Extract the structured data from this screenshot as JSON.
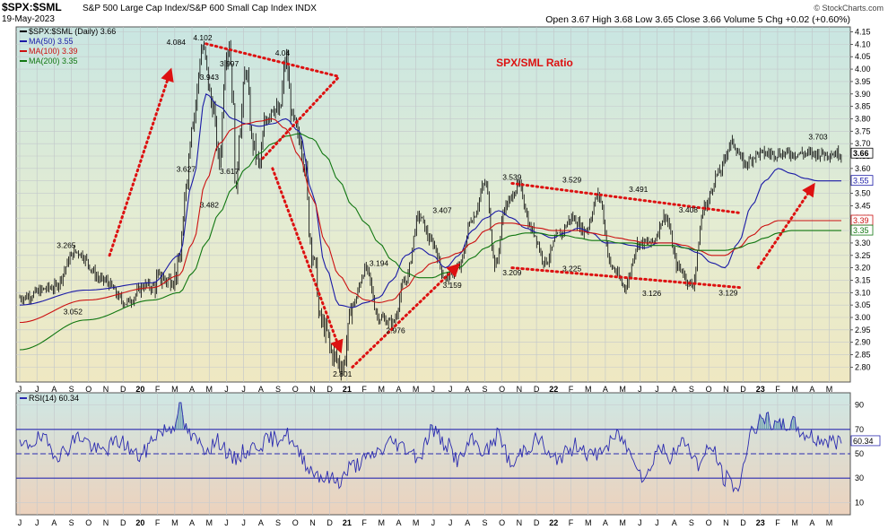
{
  "header": {
    "symbol": "$SPX:$SML",
    "description": "S&P 500 Large Cap Index/S&P 600 Small Cap Index INDX",
    "date": "19-May-2023",
    "watermark": "© StockCharts.com",
    "ohlc": "Open 3.67  High 3.68  Low 3.65  Close 3.66  Volume 5  Chg +0.02 (+0.60%)"
  },
  "chart_data": [
    {
      "type": "line",
      "panel": "price",
      "title": "SPX/SML Ratio",
      "legend": [
        {
          "label": "$SPX:$SML (Daily) 3.66",
          "color": "#000000"
        },
        {
          "label": "MA(50) 3.55",
          "color": "#1a1aa6"
        },
        {
          "label": "MA(100) 3.39",
          "color": "#cc1111"
        },
        {
          "label": "MA(200) 3.35",
          "color": "#117711"
        }
      ],
      "legend_position": "top-left",
      "ylim": [
        2.74,
        4.17
      ],
      "yticks": [
        "4.15",
        "4.10",
        "4.05",
        "4.00",
        "3.95",
        "3.90",
        "3.85",
        "3.80",
        "3.75",
        "3.70",
        "3.65",
        "3.60",
        "3.55",
        "3.50",
        "3.45",
        "3.40",
        "3.35",
        "3.30",
        "3.25",
        "3.20",
        "3.15",
        "3.10",
        "3.05",
        "3.00",
        "2.95",
        "2.90",
        "2.85",
        "2.80"
      ],
      "xticks": [
        "J",
        "J",
        "A",
        "S",
        "O",
        "N",
        "D",
        "20",
        "F",
        "M",
        "A",
        "M",
        "J",
        "J",
        "A",
        "S",
        "O",
        "N",
        "D",
        "21",
        "F",
        "M",
        "A",
        "M",
        "J",
        "J",
        "A",
        "S",
        "O",
        "N",
        "D",
        "22",
        "F",
        "M",
        "A",
        "M",
        "J",
        "J",
        "A",
        "S",
        "O",
        "N",
        "D",
        "23",
        "F",
        "M",
        "A",
        "M"
      ],
      "grid": true,
      "price_anchors": {
        "t": [
          0,
          10,
          17,
          25,
          32,
          38,
          40,
          42,
          45,
          46,
          47,
          48,
          49,
          50,
          52,
          55,
          58,
          60,
          62,
          63,
          64,
          65,
          66,
          68,
          70,
          72,
          74,
          76,
          78,
          80,
          82,
          84,
          86,
          87,
          88,
          89,
          90,
          92,
          94,
          97,
          100,
          104,
          108,
          112,
          116,
          120,
          124,
          128,
          132,
          136,
          140,
          143,
          146,
          150,
          154,
          158,
          162,
          166,
          170,
          174,
          178,
          182,
          186,
          190,
          194,
          198,
          202,
          206,
          210,
          214,
          218,
          222,
          226,
          230,
          234,
          236,
          238,
          240,
          242,
          244,
          246,
          247
        ],
        "v": [
          3.08,
          3.12,
          3.265,
          3.15,
          3.06,
          3.13,
          3.12,
          3.16,
          3.15,
          3.16,
          3.18,
          3.22,
          3.35,
          3.55,
          3.8,
          4.084,
          3.85,
          3.627,
          4.06,
          4.102,
          3.9,
          3.482,
          3.75,
          3.997,
          3.7,
          3.617,
          3.8,
          3.85,
          3.82,
          4.04,
          3.8,
          3.72,
          3.6,
          3.35,
          3.25,
          3.2,
          3.0,
          2.95,
          2.85,
          2.801,
          3.05,
          3.194,
          3.0,
          2.976,
          3.15,
          3.407,
          3.3,
          3.159,
          3.2,
          3.4,
          3.539,
          3.209,
          3.45,
          3.529,
          3.35,
          3.225,
          3.33,
          3.4,
          3.35,
          3.491,
          3.2,
          3.126,
          3.3,
          3.3,
          3.408,
          3.2,
          3.129,
          3.45,
          3.58,
          3.703,
          3.62,
          3.66,
          3.66,
          3.66,
          3.66,
          3.66,
          3.66,
          3.66,
          3.66,
          3.66,
          3.66,
          3.66
        ],
        "note_t_scale": "x index in months: t=0 is Jun 2019, t=247 is May 2023 (4 samples per month)"
      },
      "ma_anchors": {
        "ma50": {
          "t": [
            0,
            20,
            40,
            48,
            52,
            56,
            60,
            64,
            68,
            72,
            76,
            80,
            84,
            88,
            92,
            96,
            100,
            104,
            108,
            112,
            116,
            120,
            124,
            128,
            132,
            136,
            140,
            144,
            148,
            152,
            156,
            160,
            164,
            168,
            172,
            176,
            180,
            184,
            188,
            192,
            196,
            200,
            204,
            208,
            212,
            216,
            220,
            224,
            228,
            232,
            236,
            240,
            244,
            247
          ],
          "v": [
            3.05,
            3.11,
            3.14,
            3.25,
            3.55,
            3.9,
            3.85,
            3.8,
            3.78,
            3.77,
            3.78,
            3.8,
            3.75,
            3.5,
            3.2,
            3.05,
            3.04,
            3.06,
            3.08,
            3.15,
            3.25,
            3.28,
            3.25,
            3.2,
            3.25,
            3.35,
            3.4,
            3.43,
            3.4,
            3.36,
            3.34,
            3.32,
            3.34,
            3.36,
            3.34,
            3.3,
            3.3,
            3.29,
            3.28,
            3.3,
            3.3,
            3.28,
            3.26,
            3.22,
            3.2,
            3.3,
            3.45,
            3.55,
            3.6,
            3.58,
            3.56,
            3.55,
            3.55,
            3.55
          ]
        },
        "ma100": {
          "t": [
            0,
            20,
            40,
            48,
            52,
            56,
            60,
            64,
            68,
            72,
            76,
            80,
            84,
            88,
            92,
            96,
            100,
            104,
            108,
            112,
            116,
            120,
            124,
            128,
            132,
            136,
            140,
            144,
            148,
            152,
            156,
            160,
            164,
            168,
            172,
            176,
            180,
            184,
            188,
            192,
            196,
            200,
            204,
            208,
            212,
            216,
            220,
            224,
            228,
            232,
            236,
            240,
            244,
            247
          ],
          "v": [
            2.98,
            3.07,
            3.12,
            3.17,
            3.3,
            3.55,
            3.7,
            3.76,
            3.78,
            3.79,
            3.8,
            3.76,
            3.65,
            3.48,
            3.3,
            3.17,
            3.1,
            3.07,
            3.06,
            3.07,
            3.12,
            3.18,
            3.22,
            3.24,
            3.26,
            3.3,
            3.35,
            3.38,
            3.38,
            3.37,
            3.36,
            3.35,
            3.35,
            3.35,
            3.34,
            3.33,
            3.32,
            3.31,
            3.3,
            3.3,
            3.3,
            3.29,
            3.27,
            3.25,
            3.25,
            3.28,
            3.33,
            3.37,
            3.39,
            3.39,
            3.39,
            3.39,
            3.39,
            3.39
          ]
        },
        "ma200": {
          "t": [
            0,
            20,
            40,
            48,
            52,
            56,
            60,
            64,
            68,
            72,
            76,
            80,
            84,
            88,
            92,
            96,
            100,
            104,
            108,
            112,
            116,
            120,
            124,
            128,
            132,
            136,
            140,
            144,
            148,
            152,
            156,
            160,
            164,
            168,
            172,
            176,
            180,
            184,
            188,
            192,
            196,
            200,
            204,
            208,
            212,
            216,
            220,
            224,
            228,
            232,
            236,
            240,
            244,
            247
          ],
          "v": [
            2.87,
            2.99,
            3.07,
            3.1,
            3.18,
            3.3,
            3.42,
            3.52,
            3.6,
            3.66,
            3.7,
            3.73,
            3.74,
            3.72,
            3.65,
            3.55,
            3.45,
            3.38,
            3.3,
            3.23,
            3.18,
            3.16,
            3.16,
            3.18,
            3.2,
            3.24,
            3.28,
            3.31,
            3.33,
            3.34,
            3.34,
            3.33,
            3.33,
            3.32,
            3.31,
            3.31,
            3.3,
            3.3,
            3.29,
            3.29,
            3.29,
            3.28,
            3.27,
            3.27,
            3.27,
            3.28,
            3.3,
            3.32,
            3.34,
            3.35,
            3.35,
            3.35,
            3.35,
            3.35
          ]
        }
      },
      "annotations": [
        {
          "t": 47,
          "v": 4.084,
          "text": "4.084",
          "pos": "above"
        },
        {
          "t": 55,
          "v": 4.102,
          "text": "4.102",
          "pos": "above"
        },
        {
          "t": 63,
          "v": 3.997,
          "text": "3.997",
          "pos": "above"
        },
        {
          "t": 57,
          "v": 3.943,
          "text": "3.943",
          "pos": "above"
        },
        {
          "t": 79,
          "v": 4.04,
          "text": "4.04",
          "pos": "above"
        },
        {
          "t": 50,
          "v": 3.627,
          "text": "3.627",
          "pos": "below"
        },
        {
          "t": 63,
          "v": 3.617,
          "text": "3.617",
          "pos": "below"
        },
        {
          "t": 57,
          "v": 3.482,
          "text": "3.482",
          "pos": "below"
        },
        {
          "t": 14,
          "v": 3.265,
          "text": "3.265",
          "pos": "above"
        },
        {
          "t": 16,
          "v": 3.052,
          "text": "3.052",
          "pos": "below"
        },
        {
          "t": 97,
          "v": 2.801,
          "text": "2.801",
          "pos": "below"
        },
        {
          "t": 108,
          "v": 3.194,
          "text": "3.194",
          "pos": "above"
        },
        {
          "t": 113,
          "v": 2.976,
          "text": "2.976",
          "pos": "below"
        },
        {
          "t": 127,
          "v": 3.407,
          "text": "3.407",
          "pos": "above"
        },
        {
          "t": 130,
          "v": 3.159,
          "text": "3.159",
          "pos": "below"
        },
        {
          "t": 148,
          "v": 3.539,
          "text": "3.539",
          "pos": "above"
        },
        {
          "t": 148,
          "v": 3.209,
          "text": "3.209",
          "pos": "below"
        },
        {
          "t": 166,
          "v": 3.529,
          "text": "3.529",
          "pos": "above"
        },
        {
          "t": 166,
          "v": 3.225,
          "text": "3.225",
          "pos": "below"
        },
        {
          "t": 186,
          "v": 3.491,
          "text": "3.491",
          "pos": "above"
        },
        {
          "t": 190,
          "v": 3.126,
          "text": "3.126",
          "pos": "below"
        },
        {
          "t": 201,
          "v": 3.408,
          "text": "3.408",
          "pos": "above"
        },
        {
          "t": 213,
          "v": 3.129,
          "text": "3.129",
          "pos": "below"
        },
        {
          "t": 240,
          "v": 3.703,
          "text": "3.703",
          "pos": "above"
        }
      ],
      "trendlines": [
        {
          "t": [
            27,
            45
          ],
          "v": [
            3.25,
            3.98
          ],
          "arrow": true,
          "color": "#dd1111"
        },
        {
          "t": [
            56,
            96
          ],
          "v": [
            4.102,
            3.97
          ],
          "arrow": false,
          "color": "#dd1111"
        },
        {
          "t": [
            73,
            96
          ],
          "v": [
            3.64,
            3.97
          ],
          "arrow": false,
          "color": "#dd1111"
        },
        {
          "t": [
            76,
            96
          ],
          "v": [
            3.6,
            2.88
          ],
          "arrow": true,
          "color": "#dd1111"
        },
        {
          "t": [
            100,
            131
          ],
          "v": [
            2.8,
            3.2
          ],
          "arrow": true,
          "color": "#dd1111"
        },
        {
          "t": [
            148,
            217
          ],
          "v": [
            3.54,
            3.42
          ],
          "arrow": false,
          "color": "#dd1111"
        },
        {
          "t": [
            148,
            217
          ],
          "v": [
            3.2,
            3.12
          ],
          "arrow": false,
          "color": "#dd1111"
        },
        {
          "t": [
            222,
            238
          ],
          "v": [
            3.2,
            3.52
          ],
          "arrow": true,
          "color": "#dd1111"
        }
      ],
      "last_value_labels": [
        {
          "v": 3.66,
          "text": "3.66",
          "color": "#000000"
        },
        {
          "v": 3.55,
          "text": "3.55",
          "color": "#1a1aa6"
        },
        {
          "v": 3.39,
          "text": "3.39",
          "color": "#cc1111"
        },
        {
          "v": 3.35,
          "text": "3.35",
          "color": "#117711"
        }
      ]
    },
    {
      "type": "line",
      "panel": "rsi",
      "legend": [
        {
          "label": "RSI(14) 60.34",
          "color": "#2b2bb0"
        }
      ],
      "ylim": [
        0,
        100
      ],
      "yticks": [
        "90",
        "70",
        "50",
        "30",
        "10"
      ],
      "levels": [
        70,
        50,
        30
      ],
      "last_value_label": "60.34",
      "rsi_anchors": {
        "t": [
          0,
          6,
          12,
          18,
          24,
          30,
          36,
          42,
          46,
          48,
          50,
          52,
          56,
          60,
          64,
          68,
          72,
          76,
          80,
          84,
          88,
          92,
          96,
          100,
          104,
          108,
          112,
          116,
          120,
          124,
          128,
          132,
          136,
          140,
          144,
          148,
          152,
          156,
          160,
          164,
          168,
          172,
          176,
          180,
          184,
          188,
          192,
          196,
          200,
          204,
          208,
          212,
          216,
          220,
          224,
          228,
          232,
          236,
          240,
          244,
          247
        ],
        "v": [
          55,
          62,
          50,
          64,
          52,
          60,
          48,
          68,
          72,
          90,
          70,
          62,
          55,
          60,
          45,
          52,
          58,
          62,
          66,
          50,
          36,
          30,
          28,
          40,
          45,
          52,
          60,
          55,
          48,
          70,
          58,
          45,
          60,
          52,
          65,
          40,
          55,
          62,
          45,
          50,
          58,
          48,
          55,
          65,
          50,
          30,
          55,
          48,
          60,
          42,
          55,
          30,
          22,
          70,
          78,
          72,
          75,
          66,
          62,
          60,
          60.34
        ]
      }
    }
  ]
}
